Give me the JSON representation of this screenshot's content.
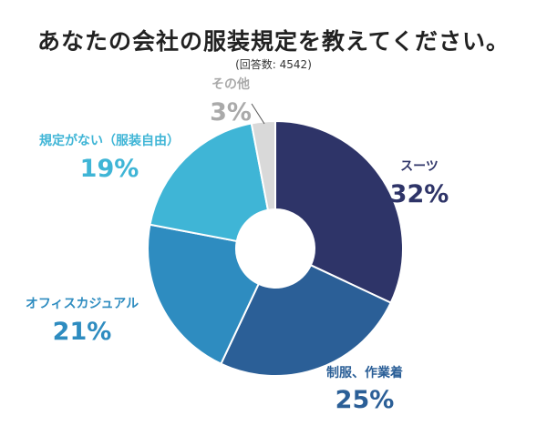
{
  "header": {
    "title": "あなたの会社の服装規定を教えてください。",
    "subtitle": "(回答数: 4542)"
  },
  "chart_data": {
    "type": "pie",
    "title": "あなたの会社の服装規定を教えてください。",
    "subtitle": "(回答数: 4542)",
    "donut": true,
    "start_at": "top",
    "direction": "clockwise",
    "categories": [
      "スーツ",
      "制服、作業着",
      "オフィスカジュアル",
      "規定がない（服装自由）",
      "その他"
    ],
    "values": [
      32,
      25,
      21,
      19,
      3
    ],
    "labels": [
      "32%",
      "25%",
      "21%",
      "19%",
      "3%"
    ],
    "colors": [
      "#2e3468",
      "#2b5f97",
      "#2e8cc0",
      "#3fb5d6",
      "#d9d9d9"
    ],
    "label_colors": [
      "#2e3468",
      "#2b5f97",
      "#2e8cc0",
      "#3fb5d6",
      "#aaaaaa"
    ]
  }
}
